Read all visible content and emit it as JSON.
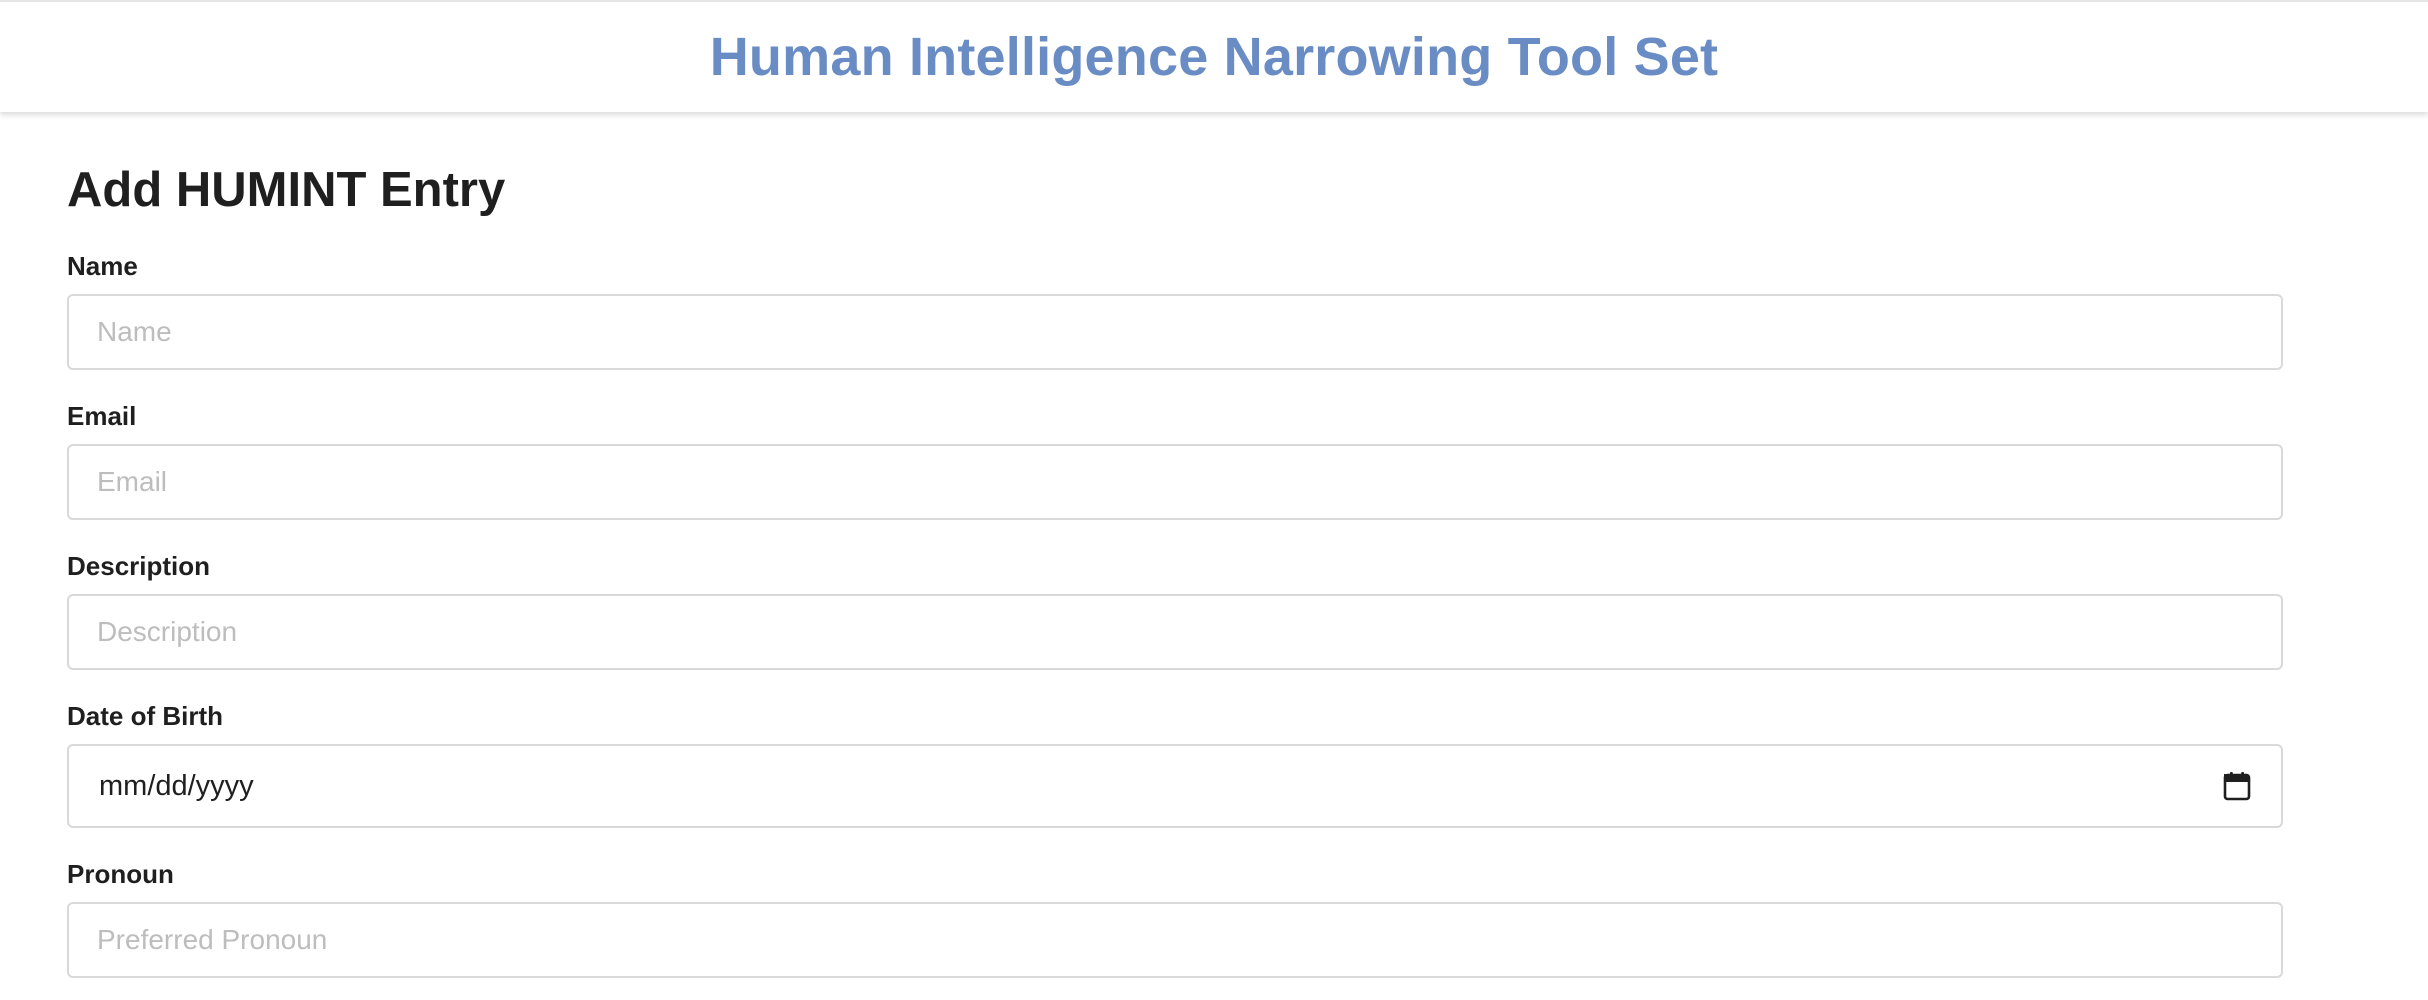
{
  "header": {
    "title": "Human Intelligence Narrowing Tool Set"
  },
  "form": {
    "title": "Add HUMINT Entry",
    "fields": {
      "name": {
        "label": "Name",
        "placeholder": "Name",
        "value": ""
      },
      "email": {
        "label": "Email",
        "placeholder": "Email",
        "value": ""
      },
      "description": {
        "label": "Description",
        "placeholder": "Description",
        "value": ""
      },
      "dob": {
        "label": "Date of Birth",
        "display": "mm/dd/yyyy",
        "icon": "calendar-icon"
      },
      "pronoun": {
        "label": "Pronoun",
        "placeholder": "Preferred Pronoun",
        "value": ""
      }
    }
  },
  "colors": {
    "brand": "#6a8cc4",
    "text": "#1f1f1f",
    "placeholder": "#bdbdbd",
    "border": "#d9d9d9"
  }
}
